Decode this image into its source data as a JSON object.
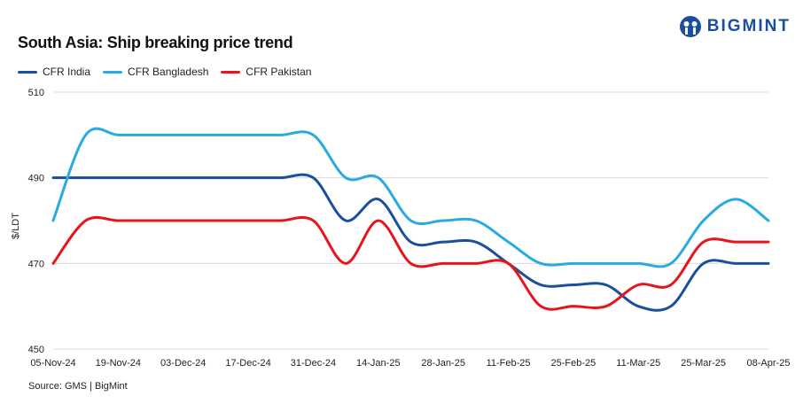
{
  "title": "South Asia: Ship breaking  price trend",
  "source": "Source: GMS | BigMint",
  "logo": "BIGMINT",
  "chart_data": {
    "type": "line",
    "title": "South Asia: Ship breaking  price trend",
    "ylabel": "$/LDT",
    "xlabel": "",
    "ylim": [
      450,
      510
    ],
    "yticks": [
      450,
      470,
      490,
      510
    ],
    "grid": true,
    "legend": "top-left",
    "x": [
      "05-Nov-24",
      "12-Nov-24",
      "19-Nov-24",
      "26-Nov-24",
      "03-Dec-24",
      "10-Dec-24",
      "17-Dec-24",
      "24-Dec-24",
      "31-Dec-24",
      "07-Jan-25",
      "14-Jan-25",
      "21-Jan-25",
      "28-Jan-25",
      "04-Feb-25",
      "11-Feb-25",
      "18-Feb-25",
      "25-Feb-25",
      "04-Mar-25",
      "11-Mar-25",
      "18-Mar-25",
      "25-Mar-25",
      "01-Apr-25",
      "08-Apr-25"
    ],
    "xticks": [
      "05-Nov-24",
      "19-Nov-24",
      "03-Dec-24",
      "17-Dec-24",
      "31-Dec-24",
      "14-Jan-25",
      "28-Jan-25",
      "11-Feb-25",
      "25-Feb-25",
      "11-Mar-25",
      "25-Mar-25",
      "08-Apr-25"
    ],
    "series": [
      {
        "name": "CFR India",
        "color": "#1a4f9c",
        "values": [
          490,
          490,
          490,
          490,
          490,
          490,
          490,
          490,
          490,
          480,
          485,
          475,
          475,
          475,
          470,
          465,
          465,
          465,
          460,
          460,
          470,
          470,
          470
        ]
      },
      {
        "name": "CFR Bangladesh",
        "color": "#29abe2",
        "values": [
          480,
          500,
          500,
          500,
          500,
          500,
          500,
          500,
          500,
          490,
          490,
          480,
          480,
          480,
          475,
          470,
          470,
          470,
          470,
          470,
          480,
          485,
          480
        ]
      },
      {
        "name": "CFR Pakistan",
        "color": "#e8141b",
        "values": [
          470,
          480,
          480,
          480,
          480,
          480,
          480,
          480,
          480,
          470,
          480,
          470,
          470,
          470,
          470,
          460,
          460,
          460,
          465,
          465,
          475,
          475,
          475
        ]
      }
    ]
  }
}
